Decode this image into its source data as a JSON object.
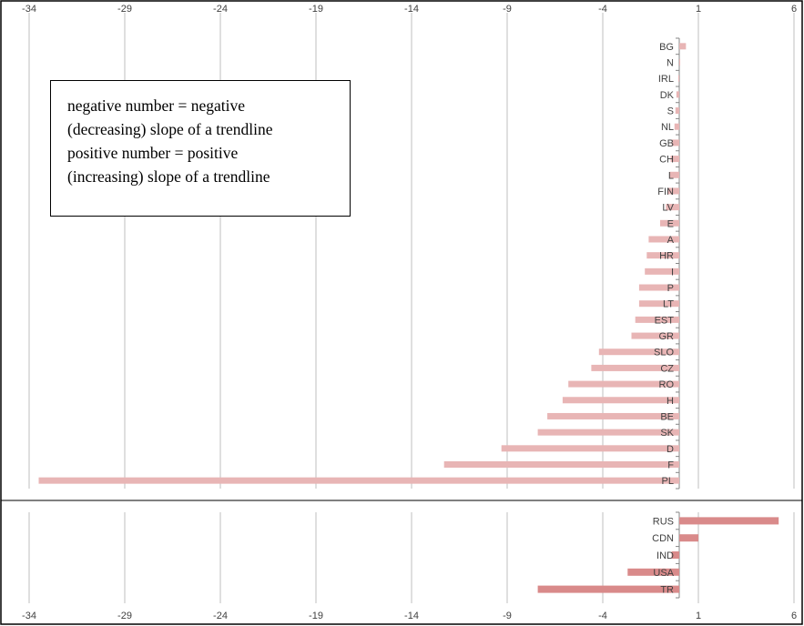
{
  "chart_data": [
    {
      "type": "bar",
      "orientation": "horizontal",
      "xlim": [
        -34,
        6
      ],
      "x_ticks": [
        "-34",
        "-29",
        "-24",
        "-19",
        "-14",
        "-9",
        "-4",
        "1",
        "6"
      ],
      "x_tick_values": [
        -34,
        -29,
        -24,
        -19,
        -14,
        -9,
        -4,
        1,
        6
      ],
      "tick_position": "top",
      "grid": true,
      "bar_color": "#e8b5b5",
      "categories": [
        "BG",
        "N",
        "IRL",
        "DK",
        "S",
        "NL",
        "GB",
        "CH",
        "L",
        "FIN",
        "LV",
        "E",
        "A",
        "HR",
        "I",
        "P",
        "LT",
        "EST",
        "GR",
        "SLO",
        "CZ",
        "RO",
        "H",
        "BE",
        "SK",
        "D",
        "F",
        "PL"
      ],
      "values": [
        0.35,
        0.05,
        -0.05,
        -0.15,
        -0.2,
        -0.25,
        -0.4,
        -0.45,
        -0.5,
        -0.6,
        -0.7,
        -1.0,
        -1.6,
        -1.7,
        -1.8,
        -2.1,
        -2.1,
        -2.3,
        -2.5,
        -4.2,
        -4.6,
        -5.8,
        -6.1,
        -6.9,
        -7.4,
        -9.3,
        -12.3,
        -33.5
      ]
    },
    {
      "type": "bar",
      "orientation": "horizontal",
      "xlim": [
        -34,
        6
      ],
      "x_ticks": [
        "-34",
        "-29",
        "-24",
        "-19",
        "-14",
        "-9",
        "-4",
        "1",
        "6"
      ],
      "x_tick_values": [
        -34,
        -29,
        -24,
        -19,
        -14,
        -9,
        -4,
        1,
        6
      ],
      "tick_position": "bottom",
      "grid": true,
      "bar_color": "#d98a8a",
      "categories": [
        "RUS",
        "CDN",
        "IND",
        "USA",
        "TR"
      ],
      "values": [
        5.2,
        1.0,
        -0.4,
        -2.7,
        -7.4
      ]
    }
  ],
  "annotation": {
    "line1": "negative number = negative",
    "line2": "(decreasing) slope of a trendline",
    "line3": "positive number = positive",
    "line4": "(increasing) slope of a trendline"
  },
  "colors": {
    "grid": "#bfbfbf",
    "axis": "#868686",
    "text": "#404040",
    "frame": "#000000"
  }
}
